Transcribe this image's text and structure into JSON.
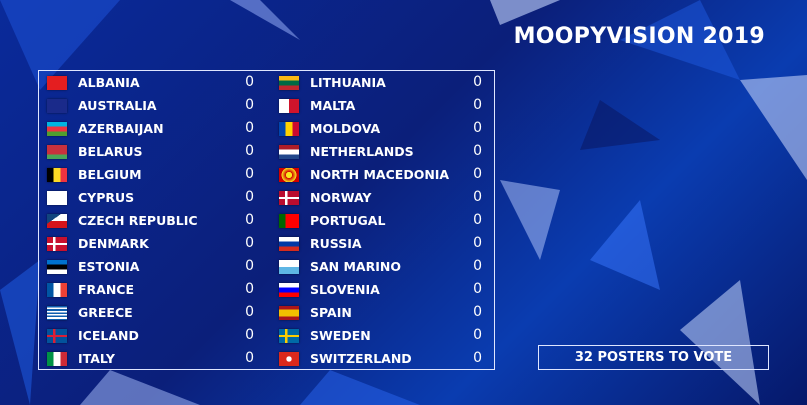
{
  "title": "MOOPYVISION 2019",
  "columns": [
    [
      {
        "country": "ALBANIA",
        "points": 0
      },
      {
        "country": "AUSTRALIA",
        "points": 0
      },
      {
        "country": "AZERBAIJAN",
        "points": 0
      },
      {
        "country": "BELARUS",
        "points": 0
      },
      {
        "country": "BELGIUM",
        "points": 0
      },
      {
        "country": "CYPRUS",
        "points": 0
      },
      {
        "country": "CZECH REPUBLIC",
        "points": 0
      },
      {
        "country": "DENMARK",
        "points": 0
      },
      {
        "country": "ESTONIA",
        "points": 0
      },
      {
        "country": "FRANCE",
        "points": 0
      },
      {
        "country": "GREECE",
        "points": 0
      },
      {
        "country": "ICELAND",
        "points": 0
      },
      {
        "country": "ITALY",
        "points": 0
      }
    ],
    [
      {
        "country": "LITHUANIA",
        "points": 0
      },
      {
        "country": "MALTA",
        "points": 0
      },
      {
        "country": "MOLDOVA",
        "points": 0
      },
      {
        "country": "NETHERLANDS",
        "points": 0
      },
      {
        "country": "NORTH MACEDONIA",
        "points": 0
      },
      {
        "country": "NORWAY",
        "points": 0
      },
      {
        "country": "PORTUGAL",
        "points": 0
      },
      {
        "country": "RUSSIA",
        "points": 0
      },
      {
        "country": "SAN MARINO",
        "points": 0
      },
      {
        "country": "SLOVENIA",
        "points": 0
      },
      {
        "country": "SPAIN",
        "points": 0
      },
      {
        "country": "SWEDEN",
        "points": 0
      },
      {
        "country": "SWITZERLAND",
        "points": 0
      }
    ]
  ],
  "footer_button": "32 POSTERS TO VOTE"
}
